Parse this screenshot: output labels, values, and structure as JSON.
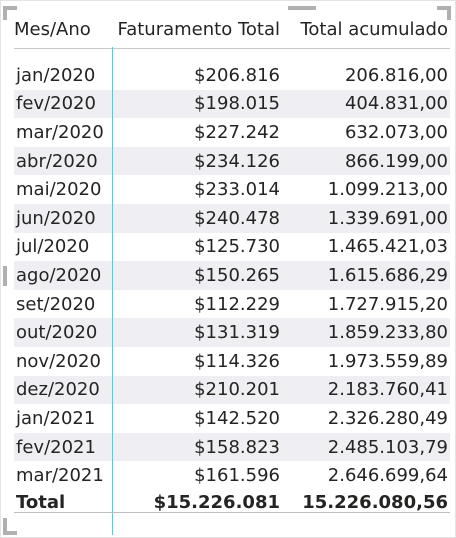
{
  "table": {
    "headers": {
      "month": "Mes/Ano",
      "revenue": "Faturamento Total",
      "cumulative": "Total acumulado"
    },
    "rows": [
      {
        "month": "jan/2020",
        "revenue": "$206.816",
        "cumulative": "206.816,00"
      },
      {
        "month": "fev/2020",
        "revenue": "$198.015",
        "cumulative": "404.831,00"
      },
      {
        "month": "mar/2020",
        "revenue": "$227.242",
        "cumulative": "632.073,00"
      },
      {
        "month": "abr/2020",
        "revenue": "$234.126",
        "cumulative": "866.199,00"
      },
      {
        "month": "mai/2020",
        "revenue": "$233.014",
        "cumulative": "1.099.213,00"
      },
      {
        "month": "jun/2020",
        "revenue": "$240.478",
        "cumulative": "1.339.691,00"
      },
      {
        "month": "jul/2020",
        "revenue": "$125.730",
        "cumulative": "1.465.421,03"
      },
      {
        "month": "ago/2020",
        "revenue": "$150.265",
        "cumulative": "1.615.686,29"
      },
      {
        "month": "set/2020",
        "revenue": "$112.229",
        "cumulative": "1.727.915,20"
      },
      {
        "month": "out/2020",
        "revenue": "$131.319",
        "cumulative": "1.859.233,80"
      },
      {
        "month": "nov/2020",
        "revenue": "$114.326",
        "cumulative": "1.973.559,89"
      },
      {
        "month": "dez/2020",
        "revenue": "$210.201",
        "cumulative": "2.183.760,41"
      },
      {
        "month": "jan/2021",
        "revenue": "$142.520",
        "cumulative": "2.326.280,49"
      },
      {
        "month": "fev/2021",
        "revenue": "$158.823",
        "cumulative": "2.485.103,79"
      },
      {
        "month": "mar/2021",
        "revenue": "$161.596",
        "cumulative": "2.646.699,64"
      }
    ],
    "total": {
      "label": "Total",
      "revenue": "$15.226.081",
      "cumulative": "15.226.080,56"
    }
  },
  "colors": {
    "alt_row": "#efeff3",
    "divider": "#6fc1d6"
  }
}
